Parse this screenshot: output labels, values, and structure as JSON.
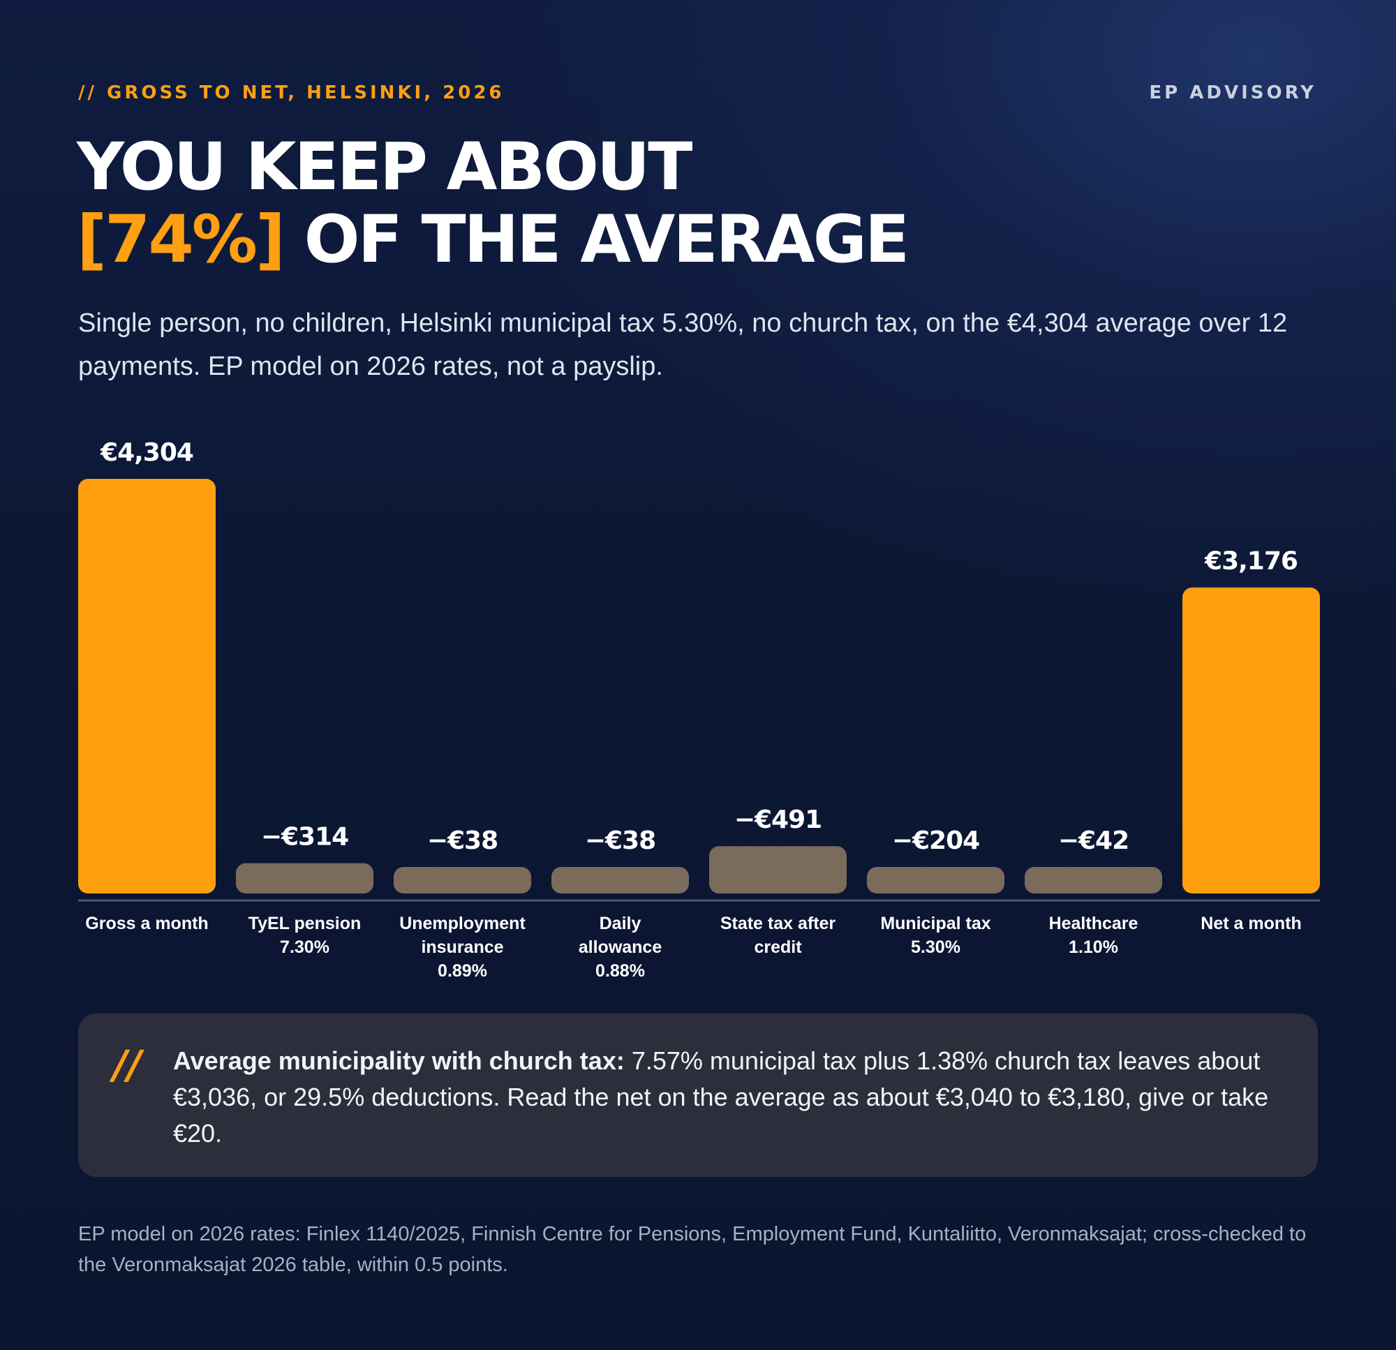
{
  "header": {
    "kicker_prefix": "//",
    "kicker": "GROSS TO NET, HELSINKI, 2026",
    "brand": "EP ADVISORY"
  },
  "headline": {
    "line1": "YOU KEEP ABOUT",
    "highlight": "[74%]",
    "line2_rest": "OF THE AVERAGE"
  },
  "subtitle": "Single person, no children, Helsinki municipal tax 5.30%, no church tax, on the €4,304 average over 12 payments. EP model on 2026 rates, not a payslip.",
  "chart_data": {
    "type": "bar",
    "categories": [
      "Gross a month",
      "TyEL pension 7.30%",
      "Unemployment insurance 0.89%",
      "Daily allowance 0.88%",
      "State tax after credit",
      "Municipal tax 5.30%",
      "Healthcare 1.10%",
      "Net a month"
    ],
    "category_lines": [
      [
        "Gross a month"
      ],
      [
        "TyEL pension",
        "7.30%"
      ],
      [
        "Unemployment",
        "insurance",
        "0.89%"
      ],
      [
        "Daily",
        "allowance",
        "0.88%"
      ],
      [
        "State tax after",
        "credit"
      ],
      [
        "Municipal tax",
        "5.30%"
      ],
      [
        "Healthcare",
        "1.10%"
      ],
      [
        "Net a month"
      ]
    ],
    "values": [
      4304,
      -314,
      -38,
      -38,
      -491,
      -204,
      -42,
      3176
    ],
    "value_labels": [
      "€4,304",
      "−€314",
      "−€38",
      "−€38",
      "−€491",
      "−€204",
      "−€42",
      "€3,176"
    ],
    "ylim": [
      0,
      4304
    ],
    "colors": {
      "total": "#ff9f0f",
      "deduction": "#7a6b5b",
      "axis": "#4a5774",
      "label": "#ffffff"
    }
  },
  "callout": {
    "mark": "//",
    "bold": "Average municipality with church tax:",
    "text": " 7.57% municipal tax plus 1.38% church tax leaves about €3,036, or 29.5% deductions. Read the net on the average as about €3,040 to €3,180, give or take €20."
  },
  "source": "EP model on 2026 rates: Finlex 1140/2025, Finnish Centre for Pensions, Employment Fund, Kuntaliitto, Veronmaksajat; cross-checked to the Veronmaksajat 2026 table, within 0.5 points."
}
